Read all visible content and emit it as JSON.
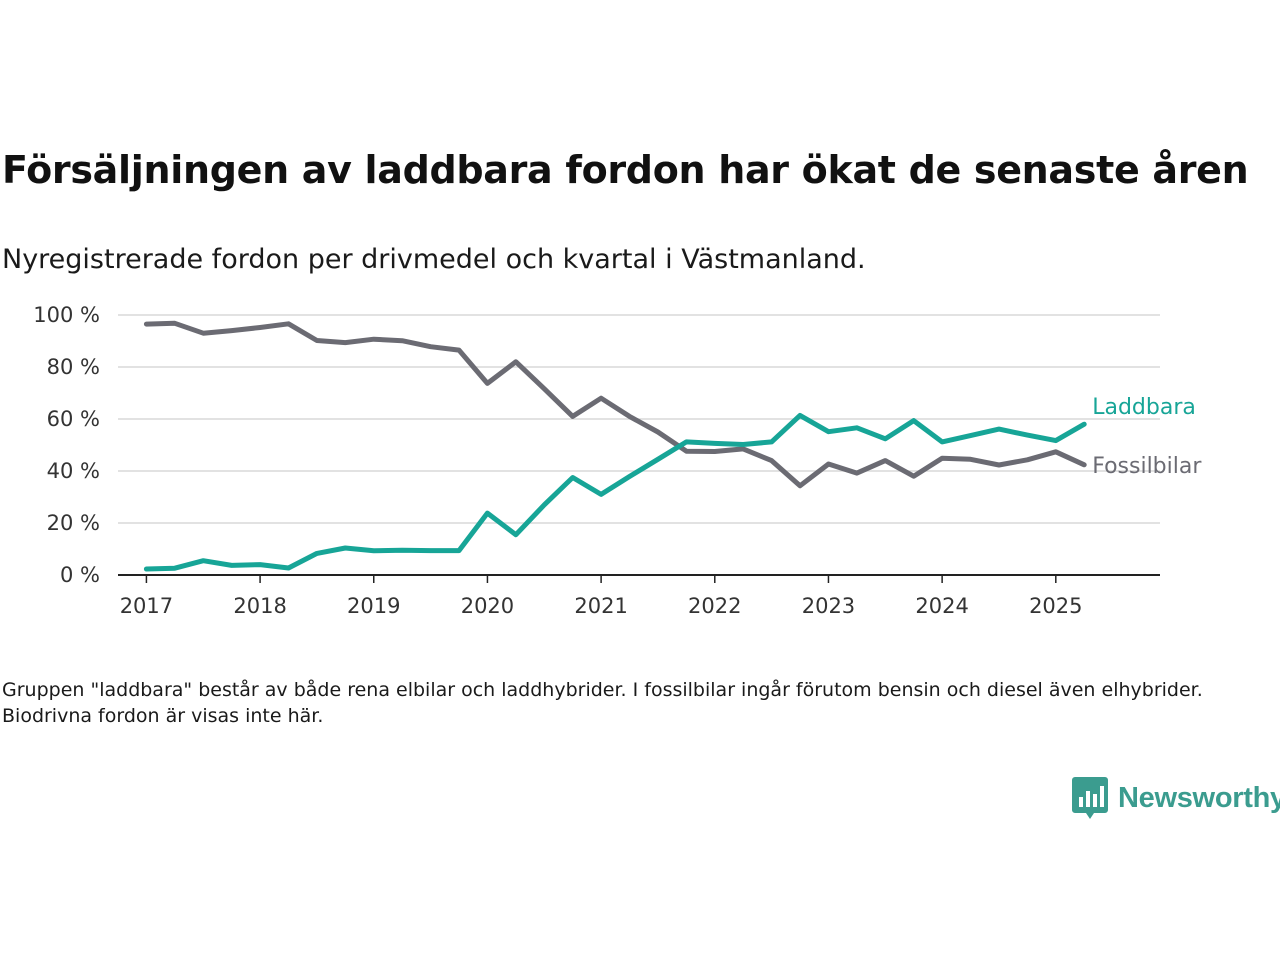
{
  "title": "Försäljningen av laddbara fordon har ökat de senaste åren",
  "subtitle": "Nyregistrerade fordon per drivmedel och kvartal i Västmanland.",
  "note": "Gruppen \"laddbara\" består av både rena elbilar och laddhybrider. I fossilbilar ingår förutom bensin och diesel även elhybrider. Biodrivna fordon är visas inte här.",
  "brand": {
    "name": "Newsworthy",
    "icon": "newsworthy-logo-icon",
    "color": "#3b9c8f"
  },
  "chart_data": {
    "type": "line",
    "grid": true,
    "ylim": [
      0,
      100
    ],
    "yticks": [
      0,
      20,
      40,
      60,
      80,
      100
    ],
    "ytick_labels": [
      "0 %",
      "20 %",
      "40 %",
      "60 %",
      "80 %",
      "100 %"
    ],
    "xlim": [
      "2016-10",
      "2025-12"
    ],
    "xticks": [
      "2017",
      "2018",
      "2019",
      "2020",
      "2021",
      "2022",
      "2023",
      "2024",
      "2025"
    ],
    "x": [
      "2017-01",
      "2017-04",
      "2017-07",
      "2017-10",
      "2018-01",
      "2018-04",
      "2018-07",
      "2018-10",
      "2019-01",
      "2019-04",
      "2019-07",
      "2019-10",
      "2020-01",
      "2020-04",
      "2020-07",
      "2020-10",
      "2021-01",
      "2021-04",
      "2021-07",
      "2021-10",
      "2022-01",
      "2022-04",
      "2022-07",
      "2022-10",
      "2023-01",
      "2023-04",
      "2023-07",
      "2023-10",
      "2024-01",
      "2024-04",
      "2024-07",
      "2024-10",
      "2025-01",
      "2025-04"
    ],
    "series": [
      {
        "name": "Fossilbilar",
        "color": "#6b6b73",
        "values": [
          96.5,
          96.8,
          93,
          94,
          95.2,
          96.6,
          90.2,
          89.4,
          90.7,
          90.1,
          87.8,
          86.5,
          73.7,
          82,
          71.6,
          61,
          68,
          61,
          55,
          47.6,
          47.5,
          48.5,
          44,
          34.3,
          42.7,
          39.2,
          44,
          38,
          44.9,
          44.5,
          42.3,
          44.3,
          47.4,
          42.4
        ]
      },
      {
        "name": "Laddbara",
        "color": "#17a597",
        "values": [
          2.3,
          2.6,
          5.5,
          3.7,
          4,
          2.7,
          8.3,
          10.4,
          9.3,
          9.5,
          9.4,
          9.4,
          23.8,
          15.5,
          27,
          37.5,
          31,
          37.9,
          44.5,
          51.2,
          50.6,
          50.2,
          51.2,
          61.4,
          55.1,
          56.6,
          52.4,
          59.4,
          51.2,
          53.6,
          56.1,
          53.8,
          51.7,
          58
        ]
      }
    ]
  }
}
